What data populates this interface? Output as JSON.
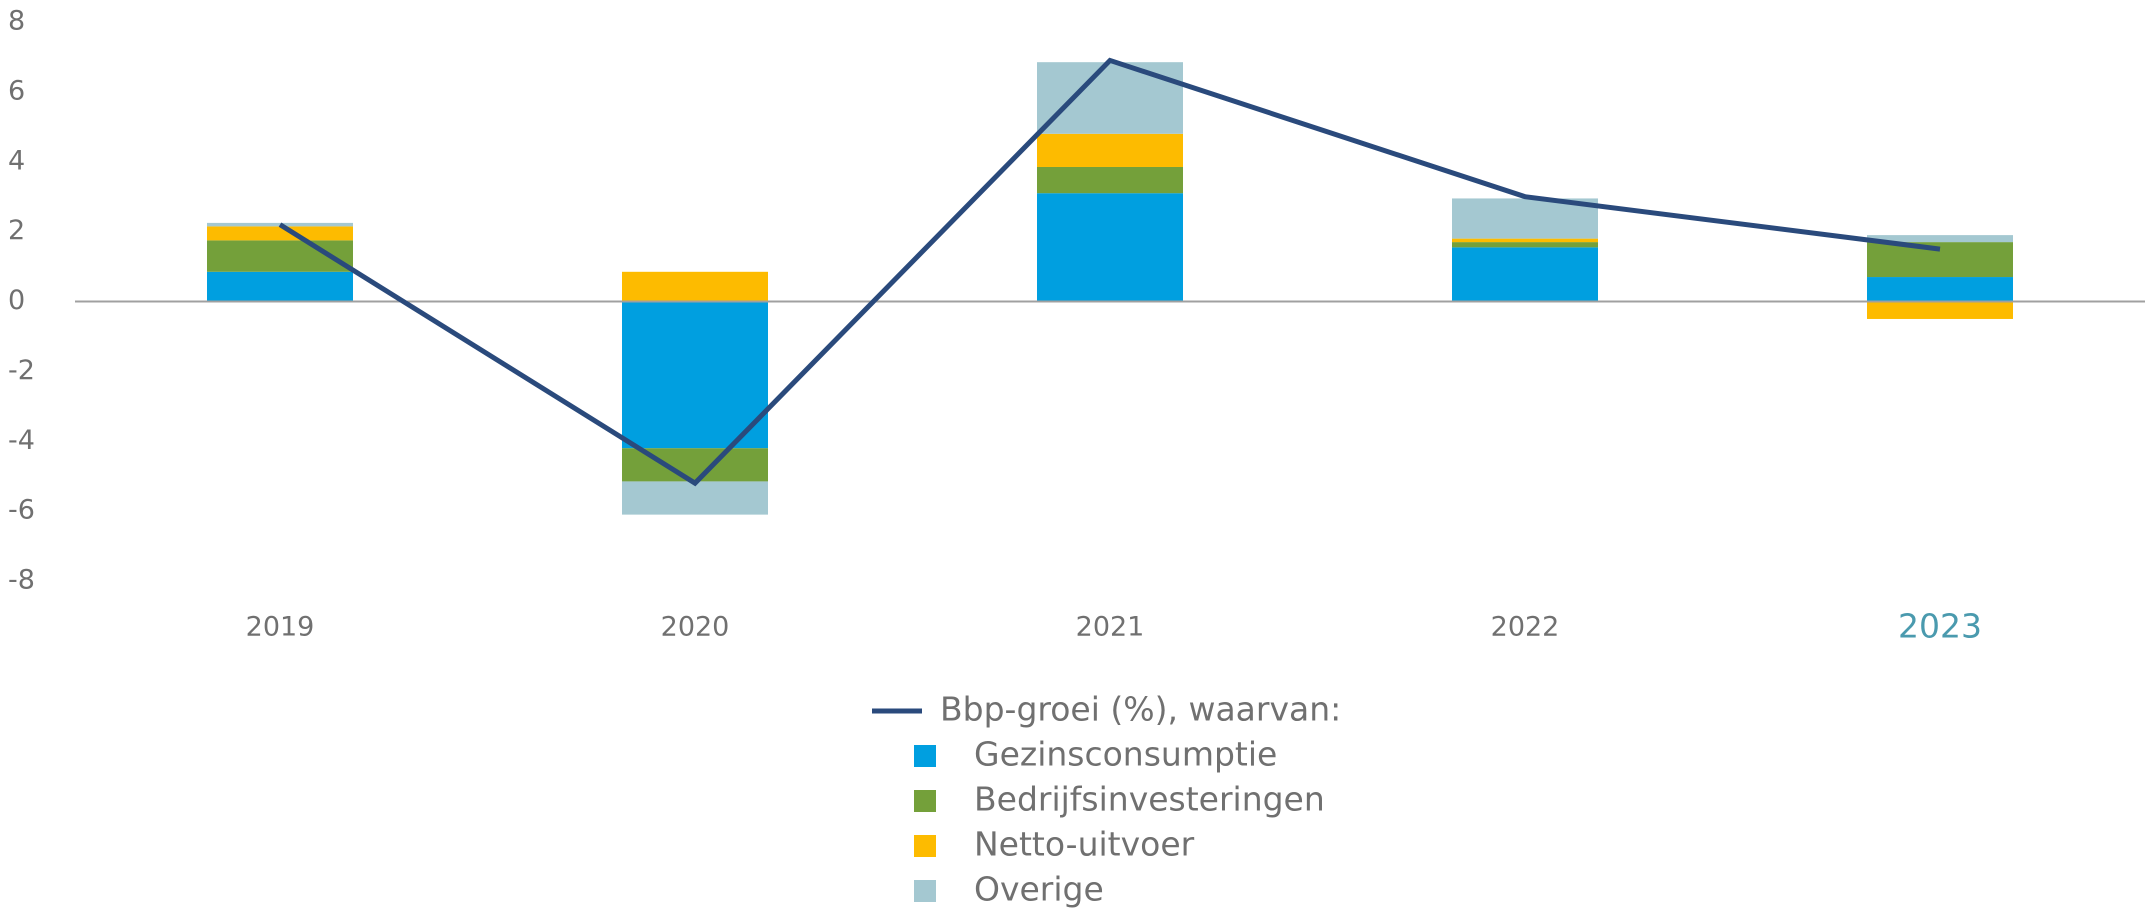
{
  "chart_data": {
    "type": "bar",
    "stacked": true,
    "categories": [
      "2019",
      "2020",
      "2021",
      "2022",
      "2023"
    ],
    "line": {
      "name": "Bbp-groei (%), waarvan:",
      "color": "#2a4a7c",
      "values": [
        2.2,
        -5.2,
        6.9,
        3.0,
        1.5
      ]
    },
    "series": [
      {
        "name": "Gezinsconsumptie",
        "color": "#009fe0",
        "values": [
          0.85,
          -4.2,
          3.1,
          1.55,
          0.7
        ]
      },
      {
        "name": "Bedrijfsinvesteringen",
        "color": "#74a03a",
        "values": [
          0.9,
          -0.95,
          0.75,
          0.15,
          1.0
        ]
      },
      {
        "name": "Netto-uitvoer",
        "color": "#fdbb00",
        "values": [
          0.4,
          0.85,
          0.95,
          0.1,
          -0.5
        ]
      },
      {
        "name": "Overige",
        "color": "#a4c8d1",
        "values": [
          0.1,
          -0.95,
          2.05,
          1.15,
          0.2
        ]
      }
    ],
    "ylim": [
      -8,
      8
    ],
    "yticks": [
      -8,
      -6,
      -4,
      -2,
      0,
      2,
      4,
      6,
      8
    ]
  }
}
